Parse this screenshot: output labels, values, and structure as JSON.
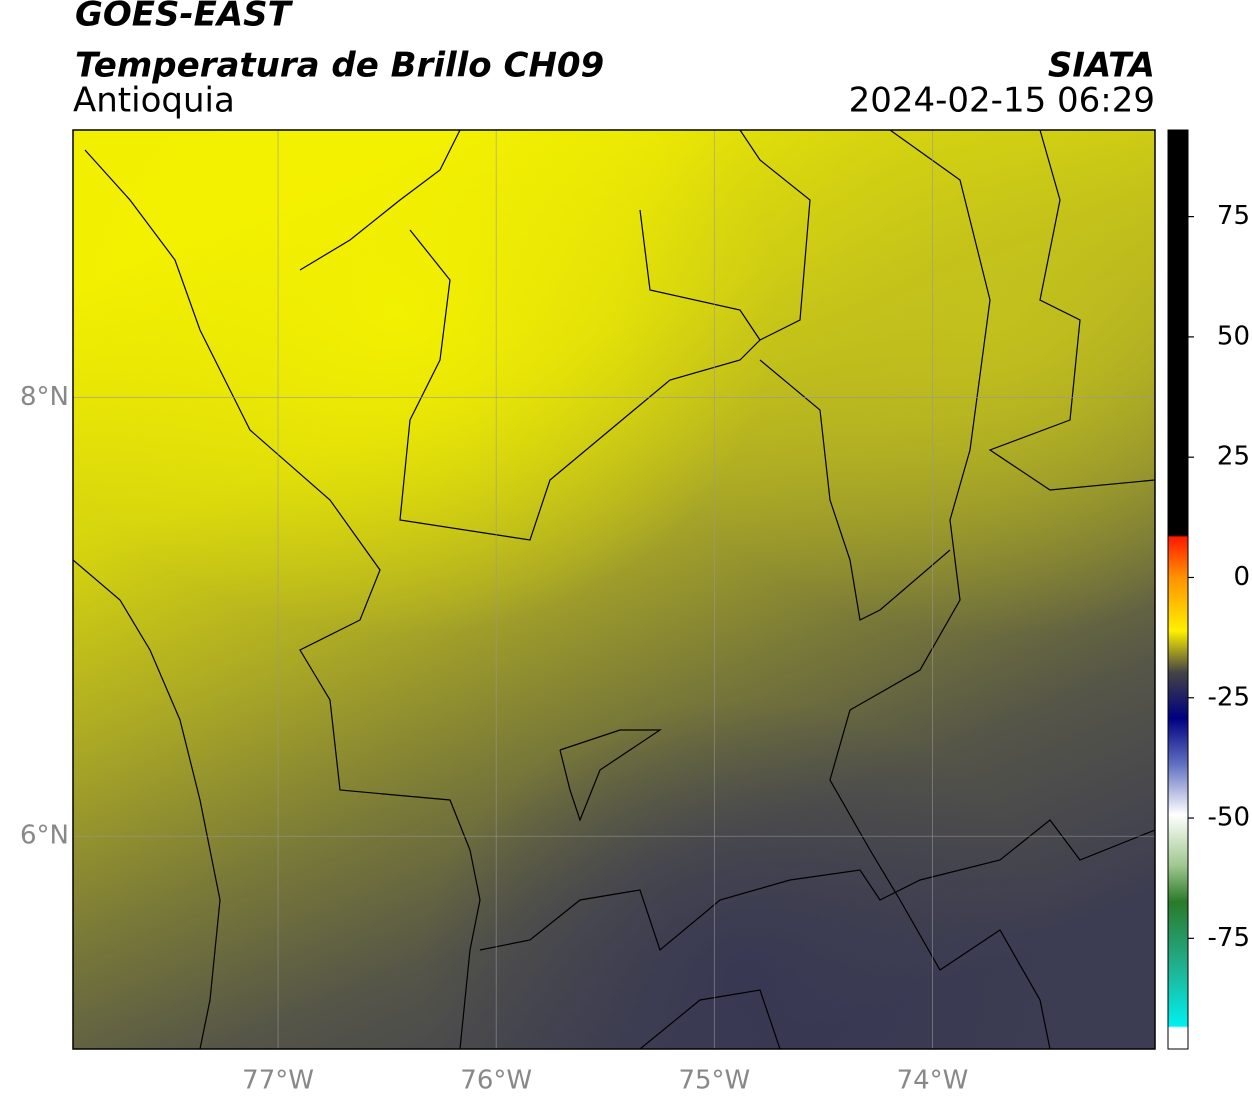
{
  "header": {
    "title": "GOES-EAST",
    "subtitle": "Temperatura de Brillo CH09",
    "source": "SIATA",
    "region": "Antioquia",
    "datetime": "2024-02-15 06:29"
  },
  "map": {
    "xlim": [
      -77.94,
      -72.98
    ],
    "ylim": [
      5.03,
      9.22
    ],
    "xticks": [
      {
        "value": -77,
        "label": "77°W"
      },
      {
        "value": -76,
        "label": "76°W"
      },
      {
        "value": -75,
        "label": "75°W"
      },
      {
        "value": -74,
        "label": "74°W"
      }
    ],
    "yticks": [
      {
        "value": 6,
        "label": "6°N"
      },
      {
        "value": 8,
        "label": "8°N"
      }
    ],
    "grid": true
  },
  "colorbar": {
    "lim": [
      -98,
      93
    ],
    "ticks": [
      -75,
      -50,
      -25,
      0,
      25,
      50,
      75
    ]
  }
}
